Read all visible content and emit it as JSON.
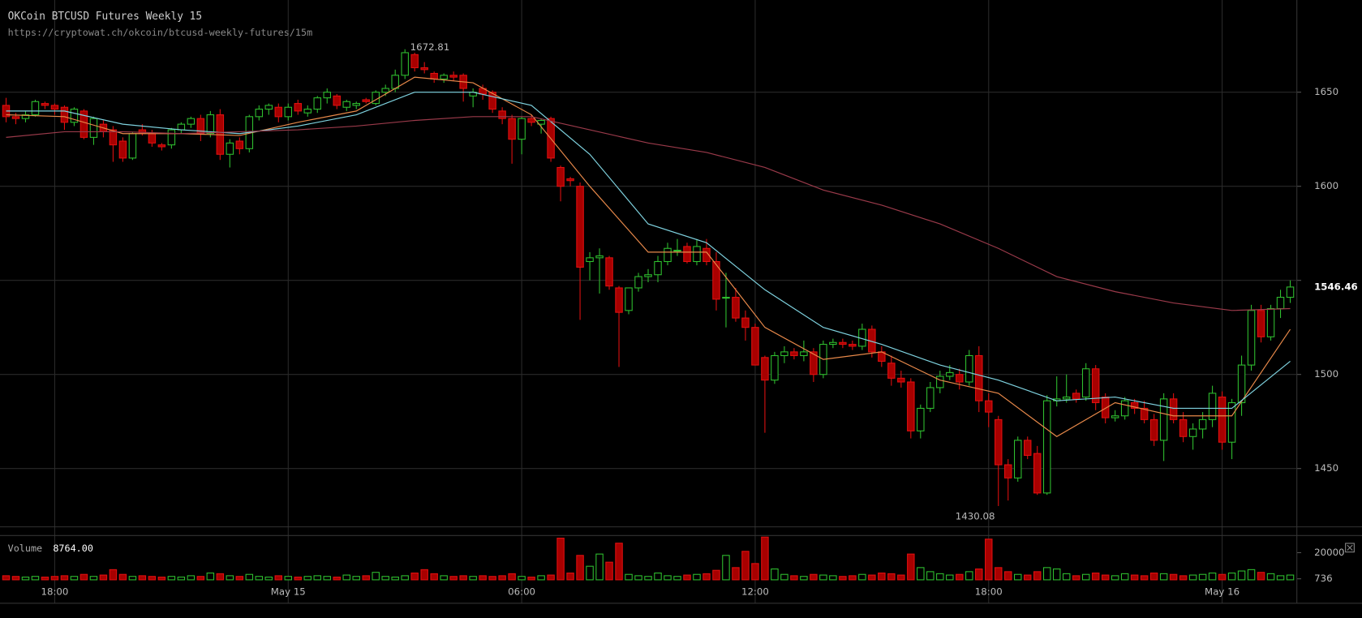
{
  "chart_data": {
    "type": "candlestick",
    "title": "OKCoin BTCUSD Futures Weekly 15",
    "subtitle": "https://cryptowat.ch/okcoin/btcusd-weekly-futures/15m",
    "volume_title": "Volume",
    "current_volume": "8764.00",
    "up_color": "#2fbf2f",
    "down_color": "#a80000",
    "down_edge": "#e01010",
    "grid": true,
    "xlim": [
      -0.625,
      132.68
    ],
    "xticks": [
      {
        "value": 5,
        "label": "18:00"
      },
      {
        "value": 29,
        "label": "May 15"
      },
      {
        "value": 53,
        "label": "06:00"
      },
      {
        "value": 77,
        "label": "12:00"
      },
      {
        "value": 101,
        "label": "18:00"
      },
      {
        "value": 125,
        "label": "May 16"
      }
    ],
    "ylim": [
      1419,
      1699
    ],
    "yticks": [
      1450,
      1500,
      1550,
      1600,
      1650
    ],
    "vlim": [
      0,
      32000
    ],
    "vticks": [
      736,
      20000
    ],
    "open": [
      1643,
      1637,
      1636,
      1638,
      1644,
      1643,
      1642,
      1634,
      1640,
      1626,
      1633,
      1630,
      1624,
      1615,
      1630,
      1628,
      1622,
      1622,
      1630,
      1633,
      1636,
      1628,
      1638,
      1617,
      1624,
      1620,
      1637,
      1641,
      1642,
      1637,
      1644,
      1639,
      1641,
      1647,
      1648,
      1642,
      1643,
      1646,
      1644,
      1650,
      1652,
      1659,
      1670,
      1663,
      1660,
      1657,
      1659,
      1659,
      1648,
      1652,
      1650,
      1640,
      1636,
      1625,
      1636,
      1633,
      1636,
      1610,
      1604,
      1600,
      1560,
      1562,
      1562,
      1546,
      1534,
      1546,
      1552,
      1553,
      1560,
      1566,
      1568,
      1560,
      1567,
      1560,
      1541,
      1541,
      1530,
      1525,
      1509,
      1497,
      1510,
      1512,
      1510,
      1512,
      1500,
      1516,
      1517,
      1516,
      1515,
      1524,
      1512,
      1506,
      1498,
      1496,
      1470,
      1482,
      1493,
      1499,
      1500,
      1496,
      1510,
      1486,
      1476,
      1452,
      1445,
      1465,
      1458,
      1437,
      1486,
      1487,
      1490,
      1488,
      1503,
      1488,
      1477,
      1478,
      1485,
      1482,
      1476,
      1465,
      1487,
      1476,
      1467,
      1471,
      1476,
      1488,
      1464,
      1485,
      1505,
      1534,
      1520,
      1535,
      1541
    ],
    "high": [
      1647,
      1639,
      1640,
      1646,
      1645,
      1644,
      1643,
      1642,
      1641,
      1637,
      1635,
      1632,
      1626,
      1629,
      1633,
      1630,
      1623,
      1631,
      1634,
      1637,
      1638,
      1640,
      1641,
      1625,
      1626,
      1638,
      1643,
      1644,
      1644,
      1644,
      1646,
      1643,
      1648,
      1652,
      1649,
      1646,
      1645,
      1647,
      1651,
      1654,
      1662,
      1672.81,
      1671,
      1666,
      1661,
      1660,
      1661,
      1660,
      1652,
      1654,
      1651,
      1642,
      1638,
      1637,
      1638,
      1636,
      1637,
      1611,
      1605,
      1602,
      1565,
      1567,
      1563,
      1547,
      1546,
      1554,
      1556,
      1563,
      1570,
      1572,
      1570,
      1572,
      1572,
      1565,
      1554,
      1546,
      1534,
      1527,
      1510,
      1512,
      1515,
      1514,
      1518,
      1514,
      1518,
      1519,
      1519,
      1518,
      1527,
      1526,
      1515,
      1510,
      1502,
      1498,
      1484,
      1496,
      1502,
      1505,
      1503,
      1513,
      1515,
      1490,
      1478,
      1455,
      1467,
      1467,
      1462,
      1489,
      1499,
      1500,
      1492,
      1506,
      1505,
      1490,
      1481,
      1488,
      1487,
      1486,
      1479,
      1490,
      1490,
      1480,
      1474,
      1480,
      1494,
      1491,
      1487,
      1510,
      1537,
      1537,
      1537,
      1545,
      1550
    ],
    "low": [
      1634,
      1633,
      1634,
      1637,
      1641,
      1638,
      1630,
      1632,
      1625,
      1622,
      1626,
      1613,
      1613,
      1614,
      1627,
      1621,
      1619,
      1620,
      1628,
      1631,
      1624,
      1626,
      1614,
      1610,
      1617,
      1618,
      1635,
      1638,
      1634,
      1635,
      1638,
      1637,
      1639,
      1644,
      1641,
      1640,
      1641,
      1644,
      1643,
      1648,
      1650,
      1657,
      1661,
      1660,
      1655,
      1655,
      1656,
      1645,
      1642,
      1646,
      1639,
      1633,
      1612,
      1617,
      1632,
      1628,
      1613,
      1592,
      1600,
      1529,
      1550,
      1543,
      1545,
      1504,
      1532,
      1544,
      1549,
      1549,
      1558,
      1563,
      1559,
      1558,
      1558,
      1534,
      1525,
      1528,
      1518,
      1505,
      1469,
      1495,
      1506,
      1508,
      1507,
      1496,
      1498,
      1514,
      1514,
      1513,
      1513,
      1509,
      1504,
      1494,
      1493,
      1466,
      1466,
      1480,
      1490,
      1497,
      1492,
      1494,
      1480,
      1472,
      1430.08,
      1433,
      1443,
      1455,
      1436,
      1436,
      1483,
      1485,
      1485,
      1486,
      1481,
      1474,
      1475,
      1476,
      1479,
      1474,
      1462,
      1454,
      1474,
      1464,
      1460,
      1466,
      1472,
      1460,
      1455,
      1478,
      1502,
      1517,
      1518,
      1530,
      1538
    ],
    "close": [
      1637,
      1636,
      1638,
      1645,
      1643,
      1641,
      1634,
      1641,
      1626,
      1636,
      1629,
      1622,
      1615,
      1628,
      1628,
      1623,
      1621,
      1630,
      1633,
      1636,
      1628,
      1638,
      1617,
      1623,
      1620,
      1637,
      1641,
      1643,
      1637,
      1642,
      1640,
      1641,
      1647,
      1650,
      1643,
      1645,
      1644,
      1645,
      1650,
      1652,
      1659,
      1671,
      1663,
      1662,
      1657,
      1659,
      1658,
      1652,
      1650,
      1649,
      1641,
      1636,
      1625,
      1636,
      1634,
      1635,
      1615,
      1600,
      1603,
      1557,
      1562,
      1563,
      1547,
      1533,
      1546,
      1552,
      1553,
      1560,
      1567,
      1566,
      1560,
      1568,
      1560,
      1540,
      1541,
      1530,
      1525,
      1505,
      1497,
      1510,
      1512,
      1510,
      1512,
      1500,
      1516,
      1517,
      1516,
      1515,
      1524,
      1512,
      1507,
      1498,
      1496,
      1470,
      1482,
      1493,
      1499,
      1501,
      1496,
      1510,
      1486,
      1480,
      1452,
      1445,
      1465,
      1457,
      1437,
      1486,
      1487,
      1488,
      1487,
      1503,
      1485,
      1477,
      1478,
      1486,
      1482,
      1476,
      1465,
      1487,
      1476,
      1467,
      1471,
      1476,
      1490,
      1464,
      1485,
      1505,
      1534,
      1520,
      1535,
      1541,
      1546.46
    ],
    "volume": [
      3000,
      2500,
      2000,
      2500,
      2000,
      2500,
      3000,
      2500,
      4000,
      2500,
      3500,
      7500,
      4000,
      2500,
      3000,
      2500,
      2000,
      2500,
      2000,
      3000,
      2500,
      5000,
      4500,
      3000,
      2500,
      4000,
      2500,
      2000,
      3000,
      2500,
      2000,
      2500,
      3000,
      2500,
      2000,
      3500,
      2500,
      3000,
      5500,
      2500,
      2000,
      3000,
      5000,
      7500,
      4500,
      3000,
      2500,
      3000,
      2500,
      3000,
      2500,
      3000,
      4500,
      2500,
      2000,
      3000,
      3500,
      30700,
      5000,
      18000,
      10000,
      19000,
      13000,
      27000,
      4000,
      3000,
      2500,
      5000,
      3000,
      2500,
      3500,
      4000,
      4500,
      7000,
      18000,
      9000,
      21000,
      12000,
      31500,
      8000,
      4000,
      3000,
      2500,
      4000,
      3500,
      3000,
      2500,
      3000,
      4000,
      3500,
      5000,
      4500,
      3500,
      19000,
      9000,
      6000,
      4500,
      3500,
      4000,
      6000,
      8000,
      30000,
      9000,
      6000,
      4000,
      3500,
      6000,
      9000,
      8000,
      4500,
      3000,
      4000,
      5000,
      3500,
      3000,
      4500,
      3500,
      3000,
      5000,
      4500,
      4000,
      3000,
      3500,
      4000,
      5000,
      4000,
      5000,
      6500,
      7500,
      5500,
      4500,
      3000,
      3500
    ],
    "moving_averages": {
      "x": [
        0,
        6,
        12,
        18,
        24,
        30,
        36,
        42,
        48,
        54,
        60,
        66,
        72,
        78,
        84,
        90,
        96,
        102,
        108,
        114,
        120,
        126,
        132
      ],
      "series": [
        {
          "color": "#e8894a",
          "values": [
            1638,
            1637,
            1628,
            1628,
            1627,
            1634,
            1640,
            1658,
            1655,
            1638,
            1600,
            1565,
            1565,
            1525,
            1508,
            1512,
            1497,
            1490,
            1467,
            1485,
            1478,
            1478,
            1524
          ]
        },
        {
          "color": "#7fd3e0",
          "values": [
            1640,
            1640,
            1633,
            1630,
            1628,
            1632,
            1638,
            1650,
            1650,
            1643,
            1617,
            1580,
            1570,
            1545,
            1525,
            1516,
            1505,
            1497,
            1486,
            1488,
            1482,
            1482,
            1507
          ]
        },
        {
          "color": "#9a3a4a",
          "values": [
            1626,
            1629,
            1629,
            1628,
            1629,
            1630,
            1632,
            1635,
            1637,
            1637,
            1630,
            1623,
            1618,
            1610,
            1598,
            1590,
            1580,
            1567,
            1552,
            1544,
            1538,
            1534,
            1535
          ]
        }
      ]
    }
  }
}
